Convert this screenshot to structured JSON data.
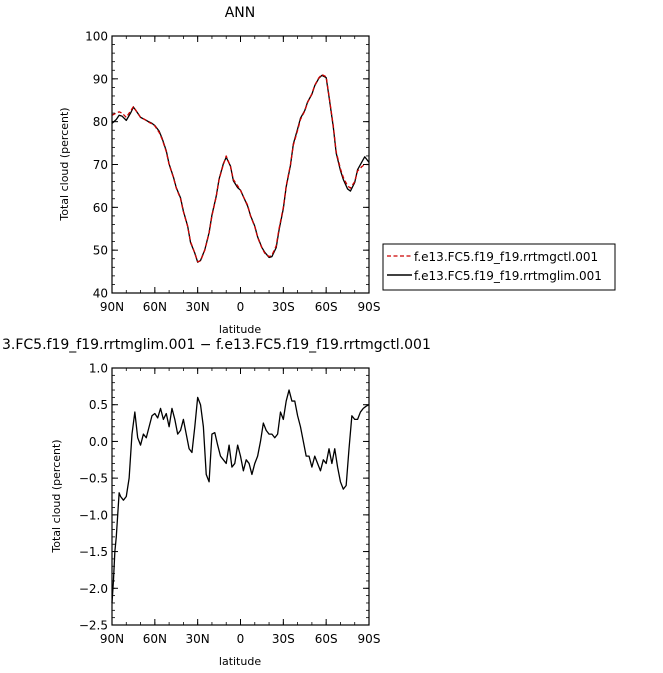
{
  "chart_data": [
    {
      "type": "line",
      "title": "ANN",
      "xlabel": "latitude",
      "ylabel": "Total cloud (percent)",
      "xlim": [
        90,
        -90
      ],
      "ylim": [
        40,
        100
      ],
      "xticks": [
        90,
        60,
        30,
        0,
        -30,
        -60,
        -90
      ],
      "xticklabels": [
        "90N",
        "60N",
        "30N",
        "0",
        "30S",
        "60S",
        "90S"
      ],
      "yticks": [
        40,
        50,
        60,
        70,
        80,
        90,
        100
      ],
      "yticklabels": [
        "40",
        "50",
        "60",
        "70",
        "80",
        "90",
        "100"
      ],
      "grid": false,
      "legend": "right",
      "series": [
        {
          "name": "f.e13.FC5.f19_f19.rrtmgctl.001",
          "color": "#cc0000",
          "dash": "dashed",
          "x": [
            90,
            87,
            85,
            83,
            80,
            77,
            75,
            73,
            70,
            67,
            65,
            62,
            60,
            57,
            55,
            52,
            50,
            47,
            45,
            42,
            40,
            37,
            35,
            32,
            30,
            28,
            25,
            22,
            20,
            17,
            15,
            12,
            10,
            7,
            5,
            2,
            0,
            -2,
            -5,
            -7,
            -10,
            -12,
            -15,
            -17,
            -20,
            -22,
            -25,
            -27,
            -30,
            -32,
            -35,
            -37,
            -40,
            -42,
            -45,
            -47,
            -50,
            -52,
            -55,
            -57,
            -60,
            -62,
            -65,
            -67,
            -70,
            -72,
            -75,
            -77,
            -80,
            -82,
            -85,
            -87,
            -90
          ],
          "y": [
            81.5,
            82,
            82.3,
            82,
            81,
            82.5,
            83.5,
            82.5,
            81,
            80.5,
            80,
            79.5,
            79,
            77.5,
            76,
            73,
            70,
            67,
            64.5,
            62,
            59,
            55.5,
            52,
            49.3,
            47.3,
            47.5,
            50,
            54,
            58,
            62.5,
            66.5,
            70,
            72,
            69.5,
            66.5,
            65,
            64,
            62.5,
            60.5,
            58,
            55.5,
            53,
            50.5,
            49.3,
            48.5,
            48.8,
            51,
            55,
            60,
            65,
            70,
            74.5,
            78,
            80.5,
            82.5,
            84.5,
            86.5,
            88.5,
            90.3,
            91,
            90.5,
            86,
            79,
            73,
            69,
            67,
            65,
            64.5,
            66,
            68.5,
            69.5,
            70,
            70
          ]
        },
        {
          "name": "f.e13.FC5.f19_f19.rrtmglim.001",
          "color": "#000000",
          "dash": "solid",
          "x": [
            90,
            87,
            85,
            83,
            80,
            77,
            75,
            73,
            70,
            67,
            65,
            62,
            60,
            57,
            55,
            52,
            50,
            47,
            45,
            42,
            40,
            37,
            35,
            32,
            30,
            28,
            25,
            22,
            20,
            17,
            15,
            12,
            10,
            7,
            5,
            2,
            0,
            -2,
            -5,
            -7,
            -10,
            -12,
            -15,
            -17,
            -20,
            -22,
            -25,
            -27,
            -30,
            -32,
            -35,
            -37,
            -40,
            -42,
            -45,
            -47,
            -50,
            -52,
            -55,
            -57,
            -60,
            -62,
            -65,
            -67,
            -70,
            -72,
            -75,
            -77,
            -80,
            -82,
            -85,
            -87,
            -90
          ],
          "y": [
            79.6,
            80.5,
            81.5,
            81.3,
            80.3,
            82,
            83.4,
            82.5,
            81,
            80.5,
            80.1,
            79.6,
            79.1,
            77.8,
            76.2,
            73.2,
            70.1,
            67.1,
            64.6,
            62.2,
            59.1,
            55.6,
            51.8,
            49.3,
            47.2,
            47.6,
            50.1,
            54.1,
            58.2,
            62.6,
            66.6,
            70.2,
            71.7,
            69.6,
            66.2,
            64.6,
            64,
            62.5,
            60.3,
            58.1,
            55.6,
            53.1,
            50.6,
            49.5,
            48.3,
            48.5,
            50.6,
            54.7,
            59.7,
            64.8,
            69.8,
            74.8,
            78.3,
            80.8,
            82.6,
            84.6,
            86.4,
            88.4,
            90.2,
            90.8,
            90.3,
            85.8,
            78.7,
            72.7,
            68.6,
            66.5,
            64.3,
            63.8,
            65.8,
            68.8,
            70.6,
            71.8,
            70.5
          ]
        }
      ]
    },
    {
      "type": "line",
      "title": "3.FC5.f19_f19.rrtmglim.001 − f.e13.FC5.f19_f19.rrtmgctl.001",
      "xlabel": "latitude",
      "ylabel": "Total cloud (percent)",
      "xlim": [
        90,
        -90
      ],
      "ylim": [
        -2.5,
        1.0
      ],
      "xticks": [
        90,
        60,
        30,
        0,
        -30,
        -60,
        -90
      ],
      "xticklabels": [
        "90N",
        "60N",
        "30N",
        "0",
        "30S",
        "60S",
        "90S"
      ],
      "yticks": [
        -2.5,
        -2.0,
        -1.5,
        -1.0,
        -0.5,
        0.0,
        0.5,
        1.0
      ],
      "yticklabels": [
        "−2.5",
        "−2.0",
        "−1.5",
        "−1.0",
        "−0.5",
        "0.0",
        "0.5",
        "1.0"
      ],
      "grid": false,
      "series": [
        {
          "color": "#000000",
          "dash": "solid",
          "x": [
            90,
            89,
            88,
            87,
            86,
            85,
            84,
            82,
            80,
            78,
            76,
            74,
            72,
            70,
            68,
            66,
            64,
            62,
            60,
            58,
            56,
            54,
            52,
            50,
            48,
            46,
            44,
            42,
            40,
            38,
            36,
            34,
            32,
            30,
            28,
            26,
            24,
            22,
            20,
            18,
            16,
            14,
            12,
            10,
            8,
            6,
            4,
            2,
            0,
            -2,
            -4,
            -6,
            -8,
            -10,
            -12,
            -14,
            -16,
            -18,
            -20,
            -22,
            -24,
            -26,
            -28,
            -30,
            -32,
            -34,
            -36,
            -38,
            -40,
            -42,
            -44,
            -46,
            -48,
            -50,
            -52,
            -54,
            -56,
            -58,
            -60,
            -62,
            -64,
            -66,
            -68,
            -70,
            -72,
            -74,
            -76,
            -78,
            -80,
            -82,
            -84,
            -86,
            -88,
            -90
          ],
          "y": [
            -2.2,
            -1.9,
            -1.5,
            -1.3,
            -1.0,
            -0.7,
            -0.75,
            -0.8,
            -0.75,
            -0.5,
            0.1,
            0.4,
            0.05,
            -0.05,
            0.1,
            0.05,
            0.2,
            0.35,
            0.38,
            0.32,
            0.45,
            0.3,
            0.38,
            0.2,
            0.45,
            0.3,
            0.1,
            0.15,
            0.3,
            0.1,
            -0.1,
            -0.15,
            0.2,
            0.6,
            0.5,
            0.2,
            -0.45,
            -0.55,
            0.1,
            0.12,
            -0.05,
            -0.2,
            -0.25,
            -0.3,
            -0.05,
            -0.35,
            -0.3,
            -0.05,
            -0.2,
            -0.4,
            -0.25,
            -0.3,
            -0.45,
            -0.3,
            -0.2,
            0.0,
            0.25,
            0.15,
            0.1,
            0.1,
            0.05,
            0.1,
            0.4,
            0.3,
            0.55,
            0.7,
            0.55,
            0.55,
            0.35,
            0.2,
            0.0,
            -0.2,
            -0.2,
            -0.35,
            -0.2,
            -0.3,
            -0.4,
            -0.25,
            -0.3,
            -0.1,
            -0.3,
            -0.1,
            -0.35,
            -0.55,
            -0.65,
            -0.6,
            -0.1,
            0.35,
            0.3,
            0.3,
            0.4,
            0.45,
            0.48,
            0.5
          ]
        }
      ]
    }
  ]
}
